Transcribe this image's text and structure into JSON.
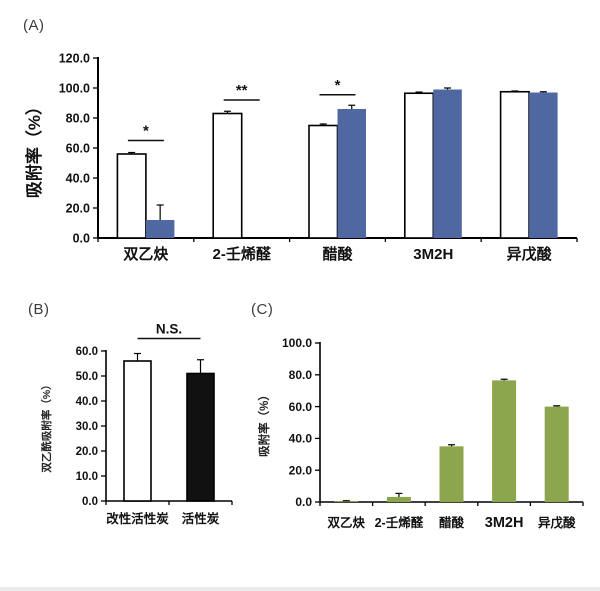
{
  "figure": {
    "panel_a_label": "(A)",
    "panel_b_label": "(B)",
    "panel_c_label": "(C)"
  },
  "colors": {
    "bar_blue": "#5068a2",
    "bar_green": "#8ca64d",
    "bar_black": "#111111",
    "bar_white": "#ffffff",
    "axis": "#000000",
    "divider": "#ececec"
  },
  "chart_data": [
    {
      "panel": "A",
      "type": "bar",
      "ylabel": "吸附率（%）",
      "ylim": [
        0,
        120
      ],
      "ytick_step": 20,
      "ytick_labels": [
        "0.0",
        "20.0",
        "40.0",
        "60.0",
        "80.0",
        "100.0",
        "120.0"
      ],
      "grid": false,
      "legend": "none",
      "categories": [
        "双乙炔",
        "2-壬烯醛",
        "醋酸",
        "3M2H",
        "异戊酸"
      ],
      "series": [
        {
          "fill": "#ffffff",
          "stroke": "#000000",
          "values": [
            56,
            83,
            75,
            96.5,
            97.5
          ],
          "errors": [
            1,
            1.5,
            1,
            0.8,
            0.5
          ]
        },
        {
          "fill": "#5068a2",
          "stroke": "none",
          "values": [
            12,
            0,
            86,
            99,
            97
          ],
          "errors": [
            10,
            0,
            2.5,
            1,
            0.5
          ]
        }
      ],
      "significance": [
        {
          "group": 0,
          "label": "*",
          "line_value": 65
        },
        {
          "group": 1,
          "label": "**",
          "line_value": 92
        },
        {
          "group": 2,
          "label": "*",
          "line_value": 95.5
        }
      ]
    },
    {
      "panel": "B",
      "type": "bar",
      "ylabel": "双乙酰吸附率（%）",
      "ylim": [
        0,
        60
      ],
      "ytick_step": 10,
      "ytick_labels": [
        "0.0",
        "10.0",
        "20.0",
        "30.0",
        "40.0",
        "50.0",
        "60.0"
      ],
      "grid": false,
      "legend": "none",
      "categories": [
        "改性活性炭",
        "活性炭"
      ],
      "series": [
        {
          "fills": [
            "#ffffff",
            "#111111"
          ],
          "stroke": "#000000",
          "values": [
            56,
            51
          ],
          "errors": [
            3,
            5.5
          ]
        }
      ],
      "significance": [
        {
          "group": "0-1",
          "label": "N.S.",
          "line_value": 65
        }
      ]
    },
    {
      "panel": "C",
      "type": "bar",
      "ylabel": "吸附率（%）",
      "ylim": [
        0,
        100
      ],
      "ytick_step": 20,
      "ytick_labels": [
        "0.0",
        "20.0",
        "40.0",
        "60.0",
        "80.0",
        "100.0"
      ],
      "grid": false,
      "legend": "none",
      "categories": [
        "双乙炔",
        "2-壬烯醛",
        "醋酸",
        "3M2H",
        "异戊酸"
      ],
      "series": [
        {
          "fill": "#8ca64d",
          "stroke": "none",
          "values": [
            0.5,
            3.2,
            35,
            76.5,
            60
          ],
          "errors": [
            0.3,
            2.2,
            1,
            0.7,
            0.5
          ]
        }
      ],
      "significance": []
    }
  ]
}
